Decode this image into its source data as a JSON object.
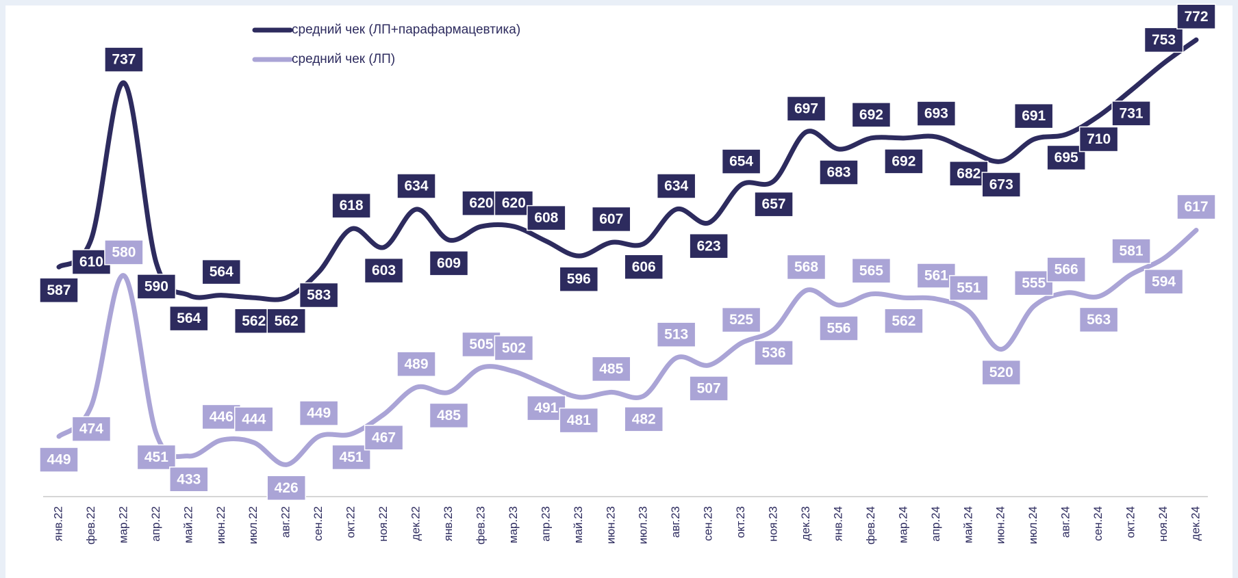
{
  "chart_data": {
    "type": "line",
    "categories": [
      "янв.22",
      "фев.22",
      "мар.22",
      "апр.22",
      "май.22",
      "июн.22",
      "июл.22",
      "авг.22",
      "сен.22",
      "окт.22",
      "ноя.22",
      "дек.22",
      "янв.23",
      "фев.23",
      "мар.23",
      "апр.23",
      "май.23",
      "июн.23",
      "июл.23",
      "авг.23",
      "сен.23",
      "окт.23",
      "ноя.23",
      "дек.23",
      "янв.24",
      "фев.24",
      "мар.24",
      "апр.24",
      "май.24",
      "июн.24",
      "июл.24",
      "авг.24",
      "сен.24",
      "окт.24",
      "ноя.24",
      "дек.24"
    ],
    "series": [
      {
        "name": "средний чек (ЛП+парафармацевтика)",
        "color": "#2d2b5e",
        "values": [
          587,
          610,
          737,
          590,
          564,
          564,
          562,
          562,
          583,
          618,
          603,
          634,
          609,
          620,
          620,
          608,
          596,
          607,
          606,
          634,
          623,
          654,
          657,
          697,
          683,
          692,
          692,
          693,
          682,
          673,
          691,
          695,
          710,
          731,
          753,
          772
        ]
      },
      {
        "name": "средний чек (ЛП)",
        "color": "#aaa4d6",
        "values": [
          449,
          474,
          580,
          451,
          433,
          446,
          444,
          426,
          449,
          451,
          467,
          489,
          485,
          505,
          502,
          491,
          481,
          485,
          482,
          513,
          507,
          525,
          536,
          568,
          556,
          565,
          562,
          561,
          551,
          520,
          555,
          566,
          563,
          581,
          594,
          617
        ]
      }
    ],
    "ylim": [
      400,
      800
    ],
    "legend": "top"
  }
}
